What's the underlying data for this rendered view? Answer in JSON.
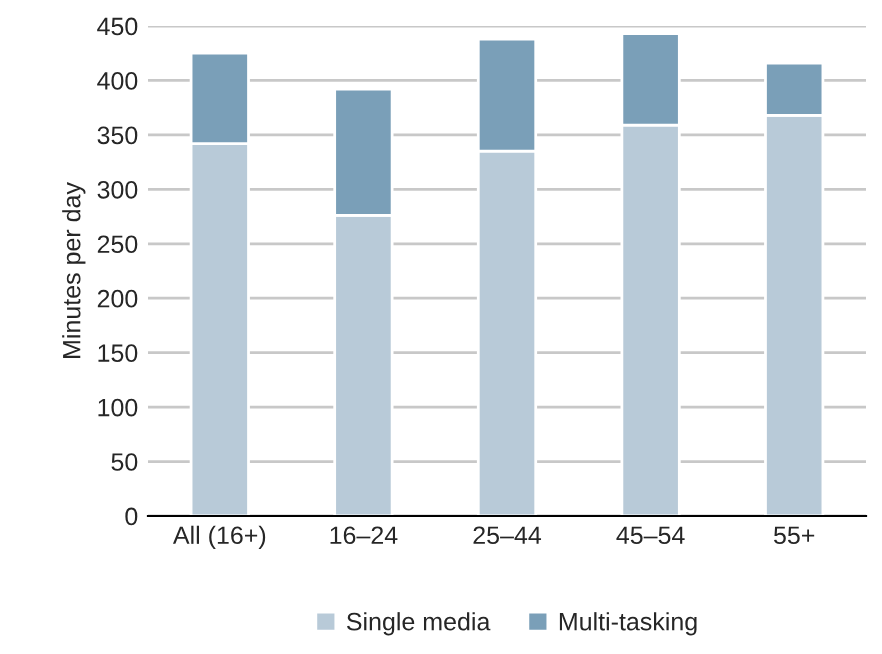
{
  "chart_data": {
    "type": "bar",
    "stacked": true,
    "ylabel": "Minutes per day",
    "categories": [
      "All (16+)",
      "16–24",
      "25–44",
      "45–54",
      "55+"
    ],
    "series": [
      {
        "name": "Single media",
        "color": "#b8cad8",
        "values": [
          342,
          276,
          335,
          359,
          368
        ]
      },
      {
        "name": "Multi-tasking",
        "color": "#7a9fb8",
        "values": [
          83,
          116,
          103,
          84,
          48
        ]
      }
    ],
    "ylim": [
      0,
      450
    ],
    "yticks": [
      0,
      50,
      100,
      150,
      200,
      250,
      300,
      350,
      400,
      450
    ],
    "grid": "y",
    "legend": "bottom"
  }
}
